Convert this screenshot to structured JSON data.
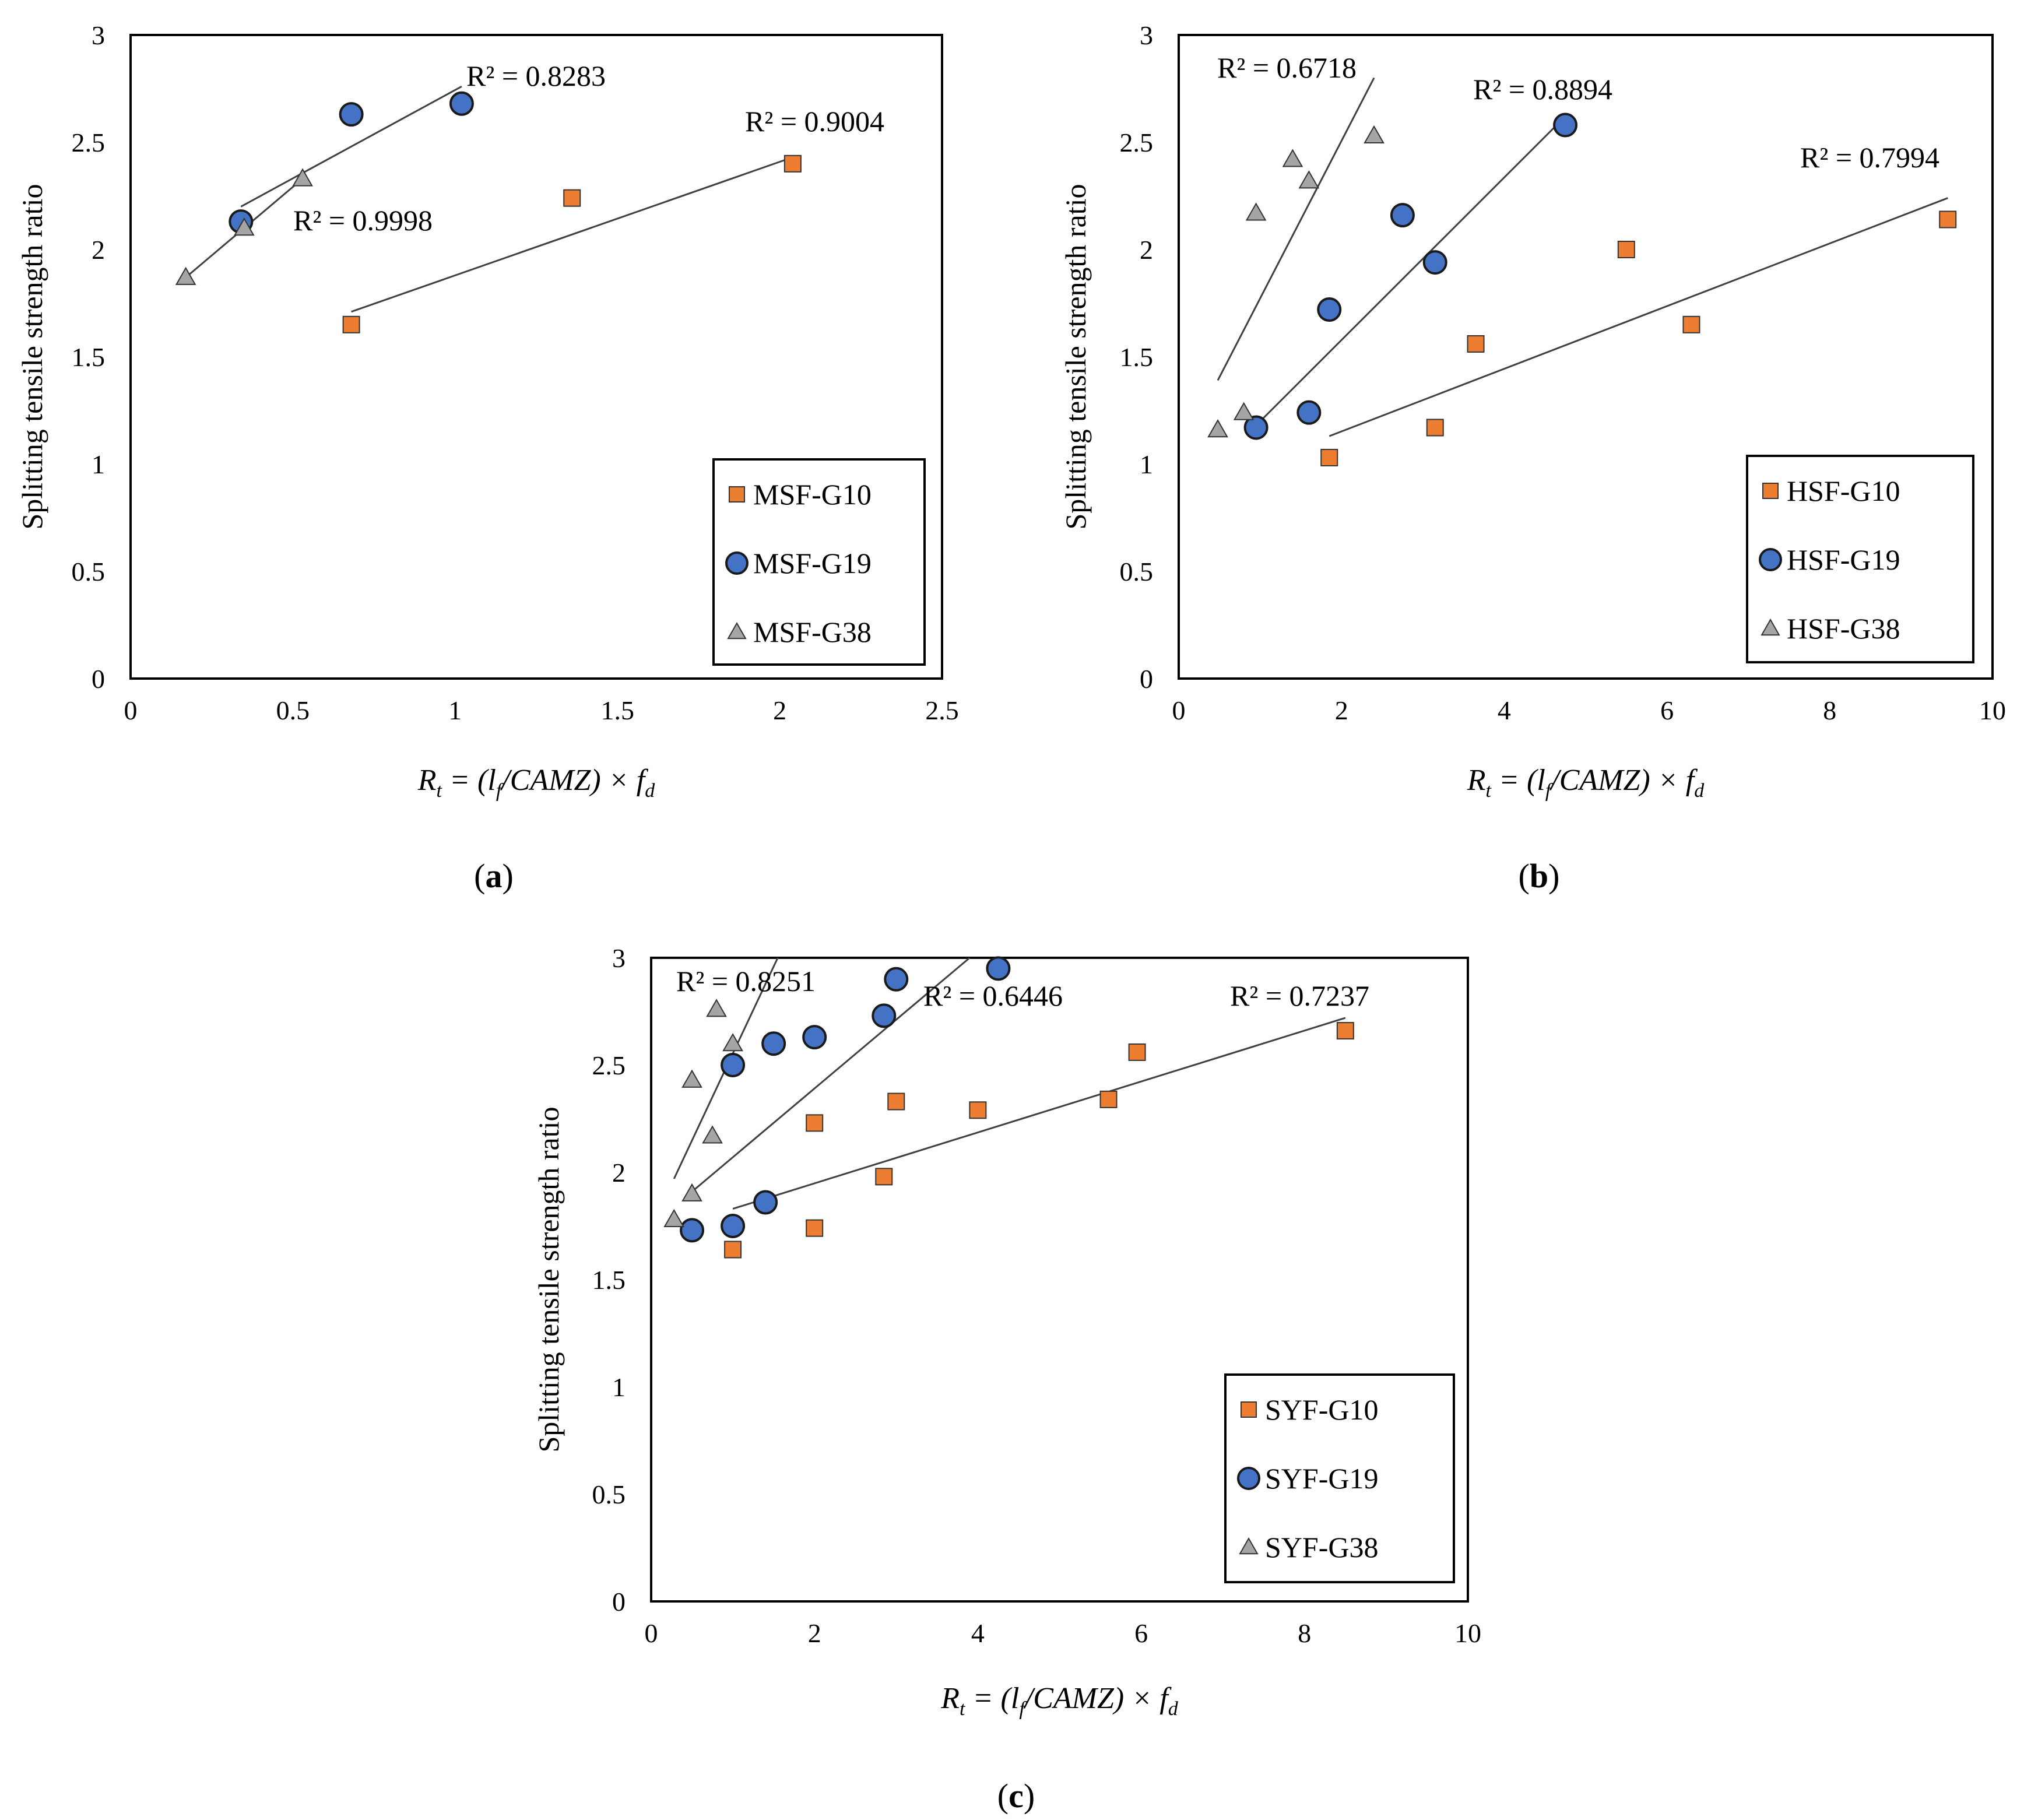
{
  "figure": {
    "panel_labels": [
      {
        "open": "(",
        "letter": "a",
        "close": ")"
      },
      {
        "open": "(",
        "letter": "b",
        "close": ")"
      },
      {
        "open": "(",
        "letter": "c",
        "close": ")"
      }
    ]
  },
  "chart_data": [
    {
      "type": "scatter",
      "panel": "a",
      "ylabel": "Splitting tensile strength ratio",
      "xlabel_parts": [
        "R",
        "t",
        " = (l",
        "f",
        "/CAMZ) × f",
        "d"
      ],
      "xlim": [
        0,
        2.5
      ],
      "ylim": [
        0,
        3
      ],
      "x_ticks": [
        "0",
        "0.5",
        "1",
        "1.5",
        "2",
        "2.5"
      ],
      "y_ticks": [
        "0",
        "0.5",
        "1",
        "1.5",
        "2",
        "2.5",
        "3"
      ],
      "legend_position": "bottom-right",
      "series": [
        {
          "name": "MSF-G10",
          "marker": "square",
          "color": "#ED7D31",
          "x": [
            0.68,
            1.36,
            2.04
          ],
          "y": [
            1.65,
            2.24,
            2.4
          ],
          "trendline": {
            "x": [
              0.68,
              2.04
            ],
            "y": [
              1.71,
              2.43
            ]
          },
          "r2_label": "R² = 0.9004"
        },
        {
          "name": "MSF-G19",
          "marker": "circle",
          "color": "#4472C4",
          "x": [
            0.34,
            0.68,
            1.02
          ],
          "y": [
            2.13,
            2.63,
            2.68
          ],
          "trendline": {
            "x": [
              0.34,
              1.02
            ],
            "y": [
              2.2,
              2.76
            ]
          },
          "r2_label": "R² = 0.8283"
        },
        {
          "name": "MSF-G38",
          "marker": "triangle",
          "color": "#A5A5A5",
          "x": [
            0.17,
            0.35,
            0.53
          ],
          "y": [
            1.87,
            2.1,
            2.33
          ],
          "trendline": {
            "x": [
              0.17,
              0.53
            ],
            "y": [
              1.87,
              2.33
            ]
          },
          "r2_label": "R² = 0.9998"
        }
      ]
    },
    {
      "type": "scatter",
      "panel": "b",
      "ylabel": "Splitting tensile strength ratio",
      "xlabel_parts": [
        "R",
        "t",
        " = (l",
        "f",
        "/CAMZ) × f",
        "d"
      ],
      "xlim": [
        0,
        10
      ],
      "ylim": [
        0,
        3
      ],
      "x_ticks": [
        "0",
        "2",
        "4",
        "6",
        "8",
        "10"
      ],
      "y_ticks": [
        "0",
        "0.5",
        "1",
        "1.5",
        "2",
        "2.5",
        "3"
      ],
      "legend_position": "bottom-right",
      "series": [
        {
          "name": "HSF-G10",
          "marker": "square",
          "color": "#ED7D31",
          "x": [
            1.85,
            3.15,
            3.65,
            5.5,
            6.3,
            9.45
          ],
          "y": [
            1.03,
            1.17,
            1.56,
            2.0,
            1.65,
            2.14
          ],
          "trendline": {
            "x": [
              1.85,
              9.45
            ],
            "y": [
              1.13,
              2.24
            ]
          },
          "r2_label": "R² = 0.7994"
        },
        {
          "name": "HSF-G19",
          "marker": "circle",
          "color": "#4472C4",
          "x": [
            0.95,
            1.6,
            1.85,
            2.75,
            3.15,
            4.75
          ],
          "y": [
            1.17,
            1.24,
            1.72,
            2.16,
            1.94,
            2.58
          ],
          "trendline": {
            "x": [
              0.95,
              4.75
            ],
            "y": [
              1.18,
              2.62
            ]
          },
          "r2_label": "R² = 0.8894"
        },
        {
          "name": "HSF-G38",
          "marker": "triangle",
          "color": "#A5A5A5",
          "x": [
            0.48,
            0.8,
            0.95,
            1.4,
            1.6,
            2.4
          ],
          "y": [
            1.16,
            1.24,
            2.17,
            2.42,
            2.32,
            2.53
          ],
          "trendline": {
            "x": [
              0.48,
              2.4
            ],
            "y": [
              1.39,
              2.8
            ]
          },
          "r2_label": "R² = 0.6718"
        }
      ]
    },
    {
      "type": "scatter",
      "panel": "c",
      "ylabel": "Splitting tensile strength ratio",
      "xlabel_parts": [
        "R",
        "t",
        " = (l",
        "f",
        "/CAMZ) × f",
        "d"
      ],
      "xlim": [
        0,
        10
      ],
      "ylim": [
        0,
        3
      ],
      "x_ticks": [
        "0",
        "2",
        "4",
        "6",
        "8",
        "10"
      ],
      "y_ticks": [
        "0",
        "0.5",
        "1",
        "1.5",
        "2",
        "2.5",
        "3"
      ],
      "legend_position": "bottom-right",
      "series": [
        {
          "name": "SYF-G10",
          "marker": "square",
          "color": "#ED7D31",
          "x": [
            1.0,
            2.0,
            2.0,
            2.85,
            3.0,
            4.0,
            5.6,
            5.95,
            8.5
          ],
          "y": [
            1.64,
            1.74,
            2.23,
            1.98,
            2.33,
            2.29,
            2.34,
            2.56,
            2.66
          ],
          "trendline": {
            "x": [
              1.0,
              8.5
            ],
            "y": [
              1.83,
              2.72
            ]
          },
          "r2_label": "R² = 0.7237"
        },
        {
          "name": "SYF-G19",
          "marker": "circle",
          "color": "#4472C4",
          "x": [
            0.5,
            1.0,
            1.0,
            1.4,
            1.5,
            2.0,
            2.85,
            3.0,
            4.25
          ],
          "y": [
            1.73,
            1.75,
            2.5,
            1.86,
            2.6,
            2.63,
            2.73,
            2.9,
            2.95
          ],
          "trendline": {
            "x": [
              0.5,
              3.9
            ],
            "y": [
              1.91,
              3.0
            ]
          },
          "r2_label": "R² = 0.6446"
        },
        {
          "name": "SYF-G38",
          "marker": "triangle",
          "color": "#A5A5A5",
          "x": [
            0.28,
            0.5,
            0.5,
            0.75,
            0.8,
            1.0
          ],
          "y": [
            1.78,
            1.9,
            2.43,
            2.17,
            2.76,
            2.6
          ],
          "trendline": {
            "x": [
              0.28,
              1.55
            ],
            "y": [
              1.97,
              3.0
            ]
          },
          "r2_label": "R² = 0.8251"
        }
      ]
    }
  ]
}
